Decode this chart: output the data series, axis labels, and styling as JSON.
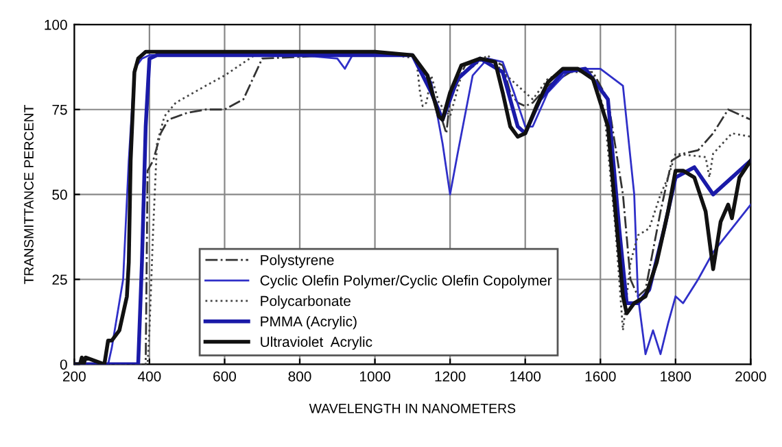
{
  "chart_data": {
    "type": "line",
    "xlabel": "WAVELENGTH IN NANOMETERS",
    "ylabel": "TRANSMITTANCE PERCENT",
    "xlim": [
      200,
      2000
    ],
    "ylim": [
      0,
      100
    ],
    "xticks": [
      200,
      400,
      600,
      800,
      1000,
      1200,
      1400,
      1600,
      1800,
      2000
    ],
    "yticks": [
      0,
      25,
      50,
      75,
      100
    ],
    "grid": true,
    "legend": "bottom",
    "marker": "none",
    "series": [
      {
        "name": "Polystyrene",
        "color": "#333333",
        "line_style": "dashdot",
        "x": [
          200,
          390,
          395,
          410,
          430,
          450,
          500,
          550,
          600,
          650,
          700,
          900,
          1100,
          1140,
          1170,
          1190,
          1200,
          1240,
          1300,
          1340,
          1360,
          1380,
          1400,
          1420,
          1460,
          1520,
          1580,
          1620,
          1660,
          1680,
          1700,
          1720,
          1760,
          1790,
          1820,
          1860,
          1900,
          1940,
          2000
        ],
        "values": [
          0,
          0,
          57,
          60,
          68,
          72,
          74,
          75,
          75,
          78,
          90,
          91,
          91,
          84,
          75,
          68,
          78,
          88,
          90,
          88,
          80,
          77,
          76,
          77,
          82,
          86,
          86,
          78,
          50,
          25,
          20,
          22,
          45,
          60,
          62,
          63,
          68,
          75,
          72
        ]
      },
      {
        "name": "Cyclic Olefin Polymer/Cyclic Olefin Copolymer",
        "color": "#2f2fc8",
        "line_style": "solid",
        "x": [
          200,
          250,
          260,
          270,
          290,
          300,
          330,
          345,
          360,
          380,
          400,
          800,
          900,
          920,
          940,
          1100,
          1150,
          1180,
          1200,
          1220,
          1260,
          1300,
          1340,
          1370,
          1400,
          1420,
          1460,
          1520,
          1600,
          1660,
          1690,
          1700,
          1720,
          1740,
          1760,
          1780,
          1800,
          1820,
          1860,
          1900,
          2000
        ],
        "values": [
          0,
          0,
          1,
          0,
          0,
          5,
          25,
          60,
          87,
          90,
          91,
          91,
          90,
          87,
          91,
          91,
          83,
          65,
          50,
          62,
          85,
          90,
          89,
          80,
          70,
          70,
          80,
          87,
          87,
          82,
          50,
          20,
          3,
          10,
          3,
          12,
          20,
          18,
          25,
          33,
          47
        ]
      },
      {
        "name": "Polycarbonate",
        "color": "#444444",
        "line_style": "dotted",
        "x": [
          200,
          395,
          400,
          410,
          420,
          440,
          470,
          550,
          600,
          680,
          1000,
          1110,
          1120,
          1127,
          1137,
          1150,
          1170,
          1200,
          1230,
          1300,
          1350,
          1380,
          1420,
          1460,
          1520,
          1580,
          1610,
          1640,
          1660,
          1680,
          1700,
          1730,
          1760,
          1780,
          1800,
          1880,
          1890,
          1900,
          1950,
          2000
        ],
        "values": [
          0,
          0,
          10,
          40,
          65,
          73,
          77,
          82,
          85,
          91,
          92,
          90,
          80,
          76,
          77,
          85,
          77,
          73,
          85,
          91,
          85,
          82,
          78,
          84,
          87,
          85,
          75,
          40,
          10,
          30,
          38,
          40,
          50,
          55,
          62,
          61,
          55,
          62,
          68,
          67
        ]
      },
      {
        "name": "PMMA (Acrylic)",
        "color": "#1a1aa8",
        "line_style": "solid",
        "x": [
          200,
          370,
          380,
          390,
          400,
          420,
          600,
          900,
          1100,
          1150,
          1180,
          1220,
          1280,
          1340,
          1380,
          1400,
          1440,
          1500,
          1560,
          1620,
          1650,
          1670,
          1700,
          1730,
          1770,
          1800,
          1850,
          1900,
          1950,
          2000
        ],
        "values": [
          0,
          0,
          30,
          70,
          90,
          91,
          91,
          91,
          91,
          80,
          72,
          84,
          90,
          86,
          70,
          68,
          78,
          86,
          87,
          78,
          40,
          18,
          18,
          22,
          40,
          55,
          58,
          50,
          55,
          60
        ]
      },
      {
        "name": "Ultraviolet  Acrylic",
        "color": "#111111",
        "line_style": "solid",
        "x": [
          200,
          215,
          220,
          225,
          230,
          280,
          290,
          300,
          320,
          330,
          340,
          345,
          350,
          360,
          370,
          390,
          600,
          1000,
          1100,
          1140,
          1170,
          1180,
          1200,
          1230,
          1280,
          1320,
          1340,
          1360,
          1380,
          1400,
          1430,
          1460,
          1500,
          1540,
          1580,
          1620,
          1640,
          1660,
          1670,
          1690,
          1720,
          1750,
          1780,
          1800,
          1820,
          1850,
          1880,
          1900,
          1920,
          1940,
          1950,
          1970,
          2000
        ],
        "values": [
          0,
          0,
          2,
          0,
          2,
          0,
          7,
          7,
          10,
          15,
          20,
          30,
          60,
          86,
          90,
          92,
          92,
          92,
          91,
          85,
          73,
          72,
          80,
          88,
          90,
          89,
          80,
          70,
          67,
          68,
          76,
          83,
          87,
          87,
          84,
          70,
          45,
          20,
          15,
          18,
          20,
          30,
          45,
          57,
          57,
          55,
          45,
          28,
          42,
          47,
          43,
          55,
          60
        ]
      }
    ]
  }
}
